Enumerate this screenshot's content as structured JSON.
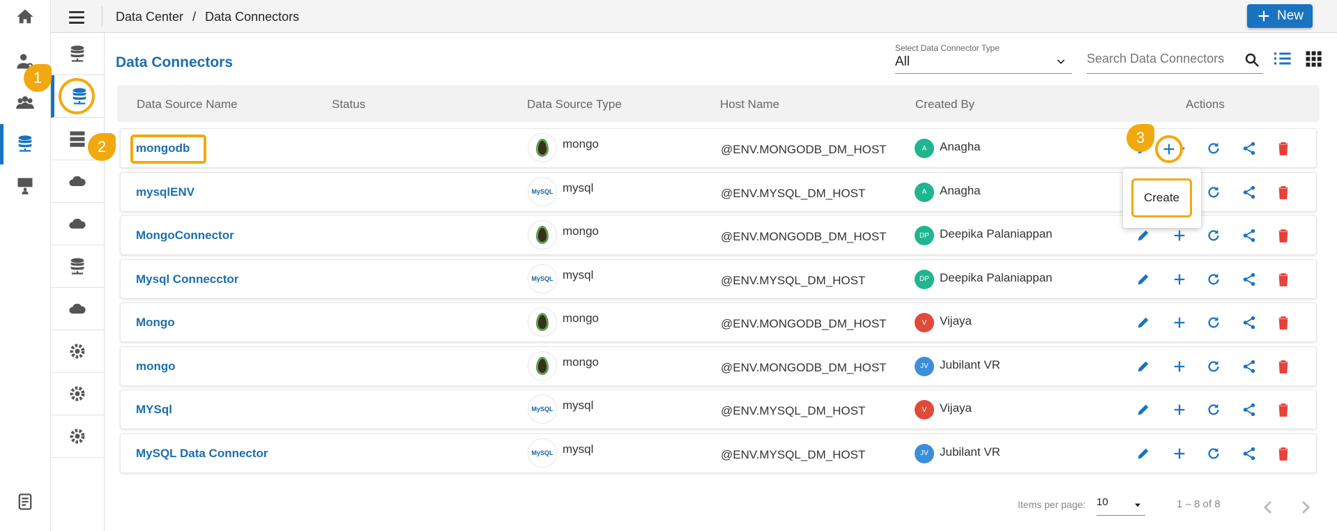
{
  "header": {
    "breadcrumb": [
      "Data Center",
      "/",
      "Data Connectors"
    ],
    "new_label": "New"
  },
  "page": {
    "title": "Data Connectors"
  },
  "filter": {
    "label": "Select Data Connector Type",
    "value": "All"
  },
  "search": {
    "placeholder": "Search Data Connectors"
  },
  "table": {
    "columns": [
      "Data Source Name",
      "Status",
      "Data Source Type",
      "Host Name",
      "Created By",
      "Actions"
    ],
    "rows": [
      {
        "name": "mongodb",
        "status": "",
        "type": "mongo",
        "host": "@ENV.MONGODB_DM_HOST",
        "initials": "A",
        "creator": "Anagha",
        "color": "#1fb58f"
      },
      {
        "name": "mysqlENV",
        "status": "",
        "type": "mysql",
        "host": "@ENV.MYSQL_DM_HOST",
        "initials": "A",
        "creator": "Anagha",
        "color": "#1fb58f"
      },
      {
        "name": "MongoConnector",
        "status": "",
        "type": "mongo",
        "host": "@ENV.MONGODB_DM_HOST",
        "initials": "DP",
        "creator": "Deepika Palaniappan",
        "color": "#1fb58f"
      },
      {
        "name": "Mysql Connecctor",
        "status": "",
        "type": "mysql",
        "host": "@ENV.MYSQL_DM_HOST",
        "initials": "DP",
        "creator": "Deepika Palaniappan",
        "color": "#1fb58f"
      },
      {
        "name": "Mongo",
        "status": "",
        "type": "mongo",
        "host": "@ENV.MONGODB_DM_HOST",
        "initials": "V",
        "creator": "Vijaya",
        "color": "#e04a3a"
      },
      {
        "name": "mongo",
        "status": "",
        "type": "mongo",
        "host": "@ENV.MONGODB_DM_HOST",
        "initials": "JV",
        "creator": "Jubilant VR",
        "color": "#3a8fd8"
      },
      {
        "name": "MYSql",
        "status": "",
        "type": "mysql",
        "host": "@ENV.MYSQL_DM_HOST",
        "initials": "V",
        "creator": "Vijaya",
        "color": "#e04a3a"
      },
      {
        "name": "MySQL Data Connector",
        "status": "",
        "type": "mysql",
        "host": "@ENV.MYSQL_DM_HOST",
        "initials": "JV",
        "creator": "Jubilant VR",
        "color": "#3a8fd8"
      }
    ]
  },
  "tooltip": {
    "label": "Create"
  },
  "callouts": [
    "1",
    "2",
    "3"
  ],
  "logos": {
    "mysql": "MySQL"
  },
  "pagination": {
    "label": "Items per page:",
    "value": "10",
    "range": "1 – 8 of 8"
  },
  "colors": {
    "accent": "#1a73c0",
    "callout": "#f2a90f",
    "delete": "#e8403a"
  }
}
